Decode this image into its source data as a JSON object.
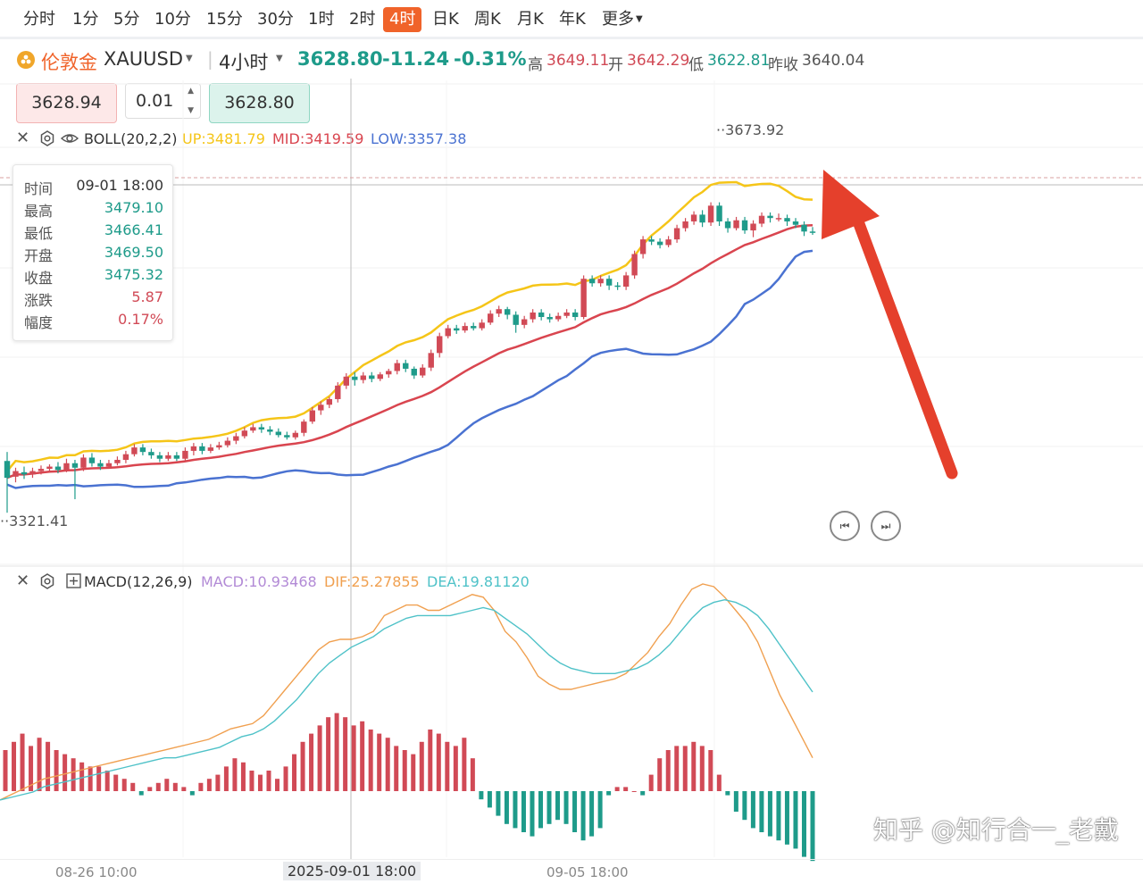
{
  "tabs": [
    "分时",
    "1分",
    "5分",
    "10分",
    "15分",
    "30分",
    "1时",
    "2时",
    "4时",
    "日K",
    "周K",
    "月K",
    "年K",
    "更多"
  ],
  "active_tab": "4时",
  "symbol": {
    "name": "伦敦金",
    "code": "XAUUSD",
    "period": "4小时",
    "price": "3628.80",
    "change": "-11.24",
    "change_pct": "-0.31%",
    "high_label": "高",
    "high": "3649.11",
    "open_label": "开",
    "open": "3642.29",
    "low_label": "低",
    "low": "3622.81",
    "prev_close_label": "昨收",
    "prev_close": "3640.04"
  },
  "trade": {
    "sell_price": "3628.94",
    "lot": "0.01",
    "buy_price": "3628.80"
  },
  "boll": {
    "label": "BOLL(20,2,2)",
    "up": "UP:3481.79",
    "mid": "MID:3419.59",
    "low": "LOW:3357.38"
  },
  "tooltip": {
    "rows": [
      {
        "k": "时间",
        "v": "09-01 18:00"
      },
      {
        "k": "最高",
        "v": "3479.10"
      },
      {
        "k": "最低",
        "v": "3466.41"
      },
      {
        "k": "开盘",
        "v": "3469.50"
      },
      {
        "k": "收盘",
        "v": "3475.32"
      },
      {
        "k": "涨跌",
        "v": "5.87"
      },
      {
        "k": "幅度",
        "v": "0.17%"
      }
    ]
  },
  "chart_labels": {
    "max_mark": "3673.92",
    "min_mark": "3321.41"
  },
  "macd": {
    "label": "MACD(12,26,9)",
    "macd": "MACD:10.93468",
    "dif": "DIF:25.27855",
    "dea": "DEA:19.81120"
  },
  "time_axis": {
    "t1": "08-26 10:00",
    "t2": "2025-09-01 18:00",
    "t3": "09-05 18:00"
  },
  "watermark": "知乎 @知行合一_老戴",
  "colors": {
    "up": "#d14a56",
    "down": "#1e9b8a",
    "boll_up": "#f5c518",
    "boll_mid": "#d9454f",
    "boll_low": "#4a72d1",
    "dif": "#f0a050",
    "dea": "#4fc2c8",
    "accent": "#f0632a",
    "arrow": "#e5402c"
  },
  "chart_data": {
    "type": "candlestick",
    "price_range": [
      3321.41,
      3673.92
    ],
    "candles": [
      [
        3376,
        3361,
        3384,
        3330
      ],
      [
        3362,
        3367,
        3370,
        3357
      ],
      [
        3366,
        3364,
        3371,
        3360
      ],
      [
        3364,
        3367,
        3370,
        3361
      ],
      [
        3367,
        3369,
        3372,
        3364
      ],
      [
        3369,
        3371,
        3373,
        3366
      ],
      [
        3371,
        3368,
        3375,
        3365
      ],
      [
        3368,
        3374,
        3378,
        3366
      ],
      [
        3374,
        3370,
        3377,
        3342
      ],
      [
        3370,
        3379,
        3382,
        3367
      ],
      [
        3379,
        3374,
        3383,
        3371
      ],
      [
        3374,
        3371,
        3377,
        3368
      ],
      [
        3371,
        3374,
        3377,
        3369
      ],
      [
        3374,
        3377,
        3380,
        3372
      ],
      [
        3377,
        3382,
        3385,
        3374
      ],
      [
        3382,
        3388,
        3391,
        3380
      ],
      [
        3388,
        3384,
        3391,
        3381
      ],
      [
        3384,
        3381,
        3387,
        3378
      ],
      [
        3381,
        3378,
        3384,
        3375
      ],
      [
        3378,
        3381,
        3384,
        3376
      ],
      [
        3381,
        3378,
        3384,
        3376
      ],
      [
        3378,
        3385,
        3388,
        3376
      ],
      [
        3385,
        3389,
        3392,
        3381
      ],
      [
        3389,
        3385,
        3392,
        3382
      ],
      [
        3385,
        3388,
        3391,
        3383
      ],
      [
        3388,
        3390,
        3393,
        3386
      ],
      [
        3390,
        3394,
        3397,
        3388
      ],
      [
        3394,
        3398,
        3401,
        3391
      ],
      [
        3398,
        3403,
        3406,
        3396
      ],
      [
        3403,
        3406,
        3409,
        3401
      ],
      [
        3406,
        3404,
        3409,
        3401
      ],
      [
        3404,
        3402,
        3407,
        3399
      ],
      [
        3402,
        3399,
        3405,
        3397
      ],
      [
        3399,
        3397,
        3402,
        3395
      ],
      [
        3397,
        3401,
        3403,
        3395
      ],
      [
        3401,
        3411,
        3413,
        3398
      ],
      [
        3411,
        3421,
        3424,
        3409
      ],
      [
        3421,
        3426,
        3429,
        3417
      ],
      [
        3426,
        3431,
        3433,
        3423
      ],
      [
        3431,
        3443,
        3446,
        3428
      ],
      [
        3443,
        3451,
        3454,
        3440
      ],
      [
        3451,
        3448,
        3455,
        3443
      ],
      [
        3448,
        3452,
        3455,
        3445
      ],
      [
        3452,
        3449,
        3455,
        3446
      ],
      [
        3449,
        3453,
        3455,
        3447
      ],
      [
        3453,
        3456,
        3458,
        3450
      ],
      [
        3456,
        3463,
        3466,
        3453
      ],
      [
        3463,
        3458,
        3466,
        3455
      ],
      [
        3458,
        3452,
        3460,
        3449
      ],
      [
        3452,
        3459,
        3462,
        3450
      ],
      [
        3459,
        3472,
        3475,
        3456
      ],
      [
        3472,
        3487,
        3490,
        3468
      ],
      [
        3487,
        3494,
        3497,
        3485
      ],
      [
        3494,
        3492,
        3497,
        3489
      ],
      [
        3492,
        3496,
        3499,
        3490
      ],
      [
        3496,
        3494,
        3499,
        3492
      ],
      [
        3494,
        3499,
        3502,
        3492
      ],
      [
        3499,
        3507,
        3510,
        3497
      ],
      [
        3507,
        3511,
        3514,
        3504
      ],
      [
        3511,
        3506,
        3513,
        3502
      ],
      [
        3506,
        3497,
        3509,
        3490
      ],
      [
        3497,
        3502,
        3505,
        3494
      ],
      [
        3502,
        3508,
        3511,
        3499
      ],
      [
        3508,
        3504,
        3511,
        3501
      ],
      [
        3504,
        3502,
        3507,
        3499
      ],
      [
        3502,
        3505,
        3508,
        3500
      ],
      [
        3505,
        3508,
        3511,
        3503
      ],
      [
        3508,
        3504,
        3511,
        3501
      ],
      [
        3504,
        3538,
        3541,
        3502
      ],
      [
        3538,
        3534,
        3541,
        3531
      ],
      [
        3534,
        3538,
        3541,
        3531
      ],
      [
        3538,
        3532,
        3541,
        3528
      ],
      [
        3532,
        3531,
        3535,
        3528
      ],
      [
        3531,
        3541,
        3544,
        3528
      ],
      [
        3541,
        3560,
        3563,
        3538
      ],
      [
        3560,
        3573,
        3576,
        3556
      ],
      [
        3573,
        3571,
        3576,
        3568
      ],
      [
        3571,
        3568,
        3574,
        3565
      ],
      [
        3568,
        3573,
        3576,
        3566
      ],
      [
        3573,
        3583,
        3586,
        3570
      ],
      [
        3583,
        3589,
        3592,
        3580
      ],
      [
        3589,
        3595,
        3598,
        3586
      ],
      [
        3595,
        3588,
        3599,
        3584
      ],
      [
        3588,
        3603,
        3606,
        3585
      ],
      [
        3603,
        3589,
        3606,
        3585
      ],
      [
        3589,
        3583,
        3592,
        3579
      ],
      [
        3583,
        3590,
        3593,
        3581
      ],
      [
        3590,
        3581,
        3593,
        3578
      ],
      [
        3581,
        3587,
        3590,
        3575
      ],
      [
        3587,
        3594,
        3597,
        3584
      ],
      [
        3594,
        3592,
        3597,
        3588
      ],
      [
        3592,
        3592,
        3596,
        3589
      ],
      [
        3592,
        3589,
        3595,
        3585
      ],
      [
        3589,
        3586,
        3592,
        3583
      ],
      [
        3586,
        3580,
        3589,
        3576
      ],
      [
        3580,
        3579,
        3584,
        3577
      ]
    ],
    "macd_bars": [
      10,
      12,
      14,
      11,
      13,
      12,
      10,
      9,
      8,
      7,
      6,
      6,
      5,
      4,
      3,
      2,
      -1,
      1,
      2,
      3,
      2,
      1,
      -1,
      2,
      3,
      4,
      6,
      8,
      7,
      5,
      4,
      5,
      3,
      6,
      9,
      12,
      14,
      16,
      18,
      19,
      18,
      16,
      17,
      15,
      14,
      13,
      11,
      10,
      9,
      12,
      15,
      14,
      12,
      11,
      13,
      8,
      -2,
      -4,
      -6,
      -8,
      -9,
      -10,
      -11,
      -9,
      -8,
      -7,
      -8,
      -10,
      -12,
      -11,
      -9,
      -1,
      1,
      1,
      0,
      -1,
      4,
      8,
      10,
      11,
      11,
      12,
      11,
      10,
      4,
      -1,
      -5,
      -7,
      -9,
      -10,
      -11,
      -12,
      -13,
      -14,
      -16,
      -17
    ],
    "dif": [
      -2,
      0,
      2,
      4,
      6,
      7,
      8,
      9,
      10,
      11,
      12,
      13,
      14,
      15,
      16,
      17,
      18,
      19,
      20,
      21,
      23,
      25,
      26,
      27,
      30,
      35,
      40,
      45,
      50,
      55,
      58,
      59,
      59,
      60,
      62,
      68,
      70,
      72,
      72,
      70,
      70,
      72,
      74,
      76,
      75,
      70,
      62,
      58,
      52,
      45,
      42,
      40,
      40,
      41,
      42,
      43,
      44,
      46,
      50,
      54,
      60,
      65,
      72,
      78,
      80,
      79,
      75,
      70,
      65,
      58,
      48,
      38,
      30,
      22,
      14
    ],
    "dea": [
      -2,
      -1,
      0,
      1,
      3,
      4,
      5,
      6,
      7,
      8,
      9,
      10,
      11,
      12,
      13,
      14,
      14,
      15,
      16,
      17,
      18,
      20,
      22,
      23,
      25,
      28,
      32,
      36,
      41,
      46,
      50,
      53,
      56,
      58,
      60,
      63,
      65,
      67,
      68,
      68,
      68,
      68,
      69,
      70,
      71,
      70,
      67,
      64,
      61,
      57,
      53,
      50,
      48,
      47,
      46,
      46,
      46,
      47,
      48,
      50,
      53,
      57,
      62,
      67,
      71,
      73,
      74,
      73,
      71,
      68,
      63,
      57,
      51,
      45,
      39
    ]
  }
}
